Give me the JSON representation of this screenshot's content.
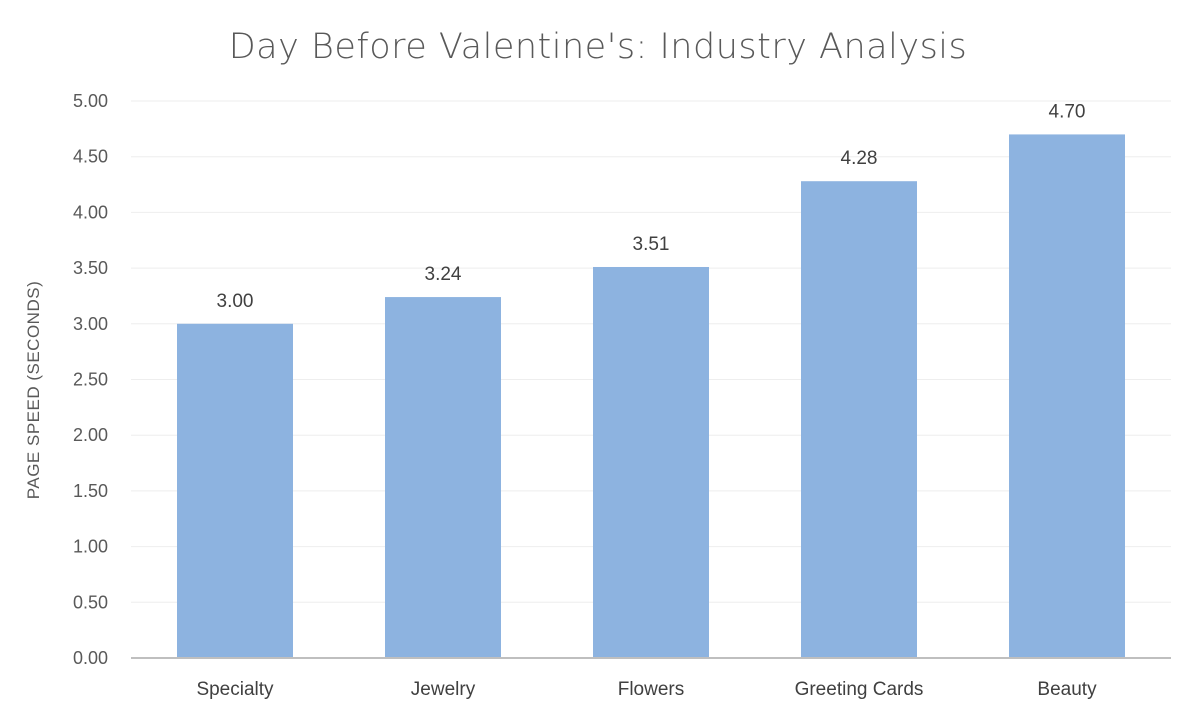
{
  "chart_data": {
    "type": "bar",
    "title": "Day Before Valentine's: Industry Analysis",
    "xlabel": "",
    "ylabel": "PAGE SPEED (SECONDS)",
    "categories": [
      "Specialty",
      "Jewelry",
      "Flowers",
      "Greeting Cards",
      "Beauty"
    ],
    "values": [
      3.0,
      3.24,
      3.51,
      4.28,
      4.7
    ],
    "data_labels": [
      "3.00",
      "3.24",
      "3.51",
      "4.28",
      "4.70"
    ],
    "ylim": [
      0,
      5
    ],
    "yticks": [
      0,
      0.5,
      1,
      1.5,
      2,
      2.5,
      3,
      3.5,
      4,
      4.5,
      5
    ],
    "ytick_labels": [
      "0.00",
      "0.50",
      "1.00",
      "1.50",
      "2.00",
      "2.50",
      "3.00",
      "3.50",
      "4.00",
      "4.50",
      "5.00"
    ],
    "grid": true,
    "legend": "none",
    "bar_color": "#8db3e0"
  }
}
